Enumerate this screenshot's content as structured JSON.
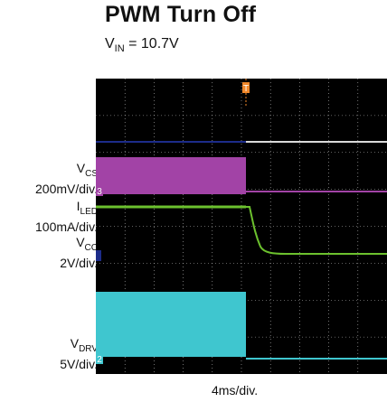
{
  "title": "PWM Turn Off",
  "subtitle": {
    "prefix": "V",
    "sub": "IN",
    "rest": " = 10.7V"
  },
  "xlabel": "4ms/div.",
  "channels": [
    {
      "sym": "V",
      "sub": "CS",
      "scale": "200mV/div.",
      "marker": "3"
    },
    {
      "sym": "I",
      "sub": "LED",
      "scale": "100mA/div.",
      "marker": ""
    },
    {
      "sym": "V",
      "sub": "CC",
      "scale": "2V/div.",
      "marker": ""
    },
    {
      "sym": "V",
      "sub": "DRV",
      "scale": "5V/div.",
      "marker": "2"
    }
  ],
  "trigger_marker": "T",
  "colors": {
    "background": "#000000",
    "grid": "#bfbfbf",
    "vcs": "#a243a6",
    "iled": "#1d2c8a",
    "vcc": "#6cc12e",
    "vdrv": "#3fc6cf",
    "trigger": "#f0882a"
  },
  "chart_data": {
    "type": "line",
    "title": "PWM Turn Off",
    "xlabel": "4ms/div.",
    "x_divisions": 10,
    "y_divisions": 8,
    "turn_off_time_div": 5.6,
    "series": [
      {
        "name": "VCS",
        "scale": "200mV/div.",
        "before": "PWM switching burst",
        "after": "low"
      },
      {
        "name": "ILED",
        "scale": "100mA/div.",
        "before": "on",
        "after": "0"
      },
      {
        "name": "VCC",
        "scale": "2V/div.",
        "before": "high",
        "after": "drops and settles lower"
      },
      {
        "name": "VDRV",
        "scale": "5V/div.",
        "before": "PWM switching burst",
        "after": "low"
      }
    ]
  }
}
